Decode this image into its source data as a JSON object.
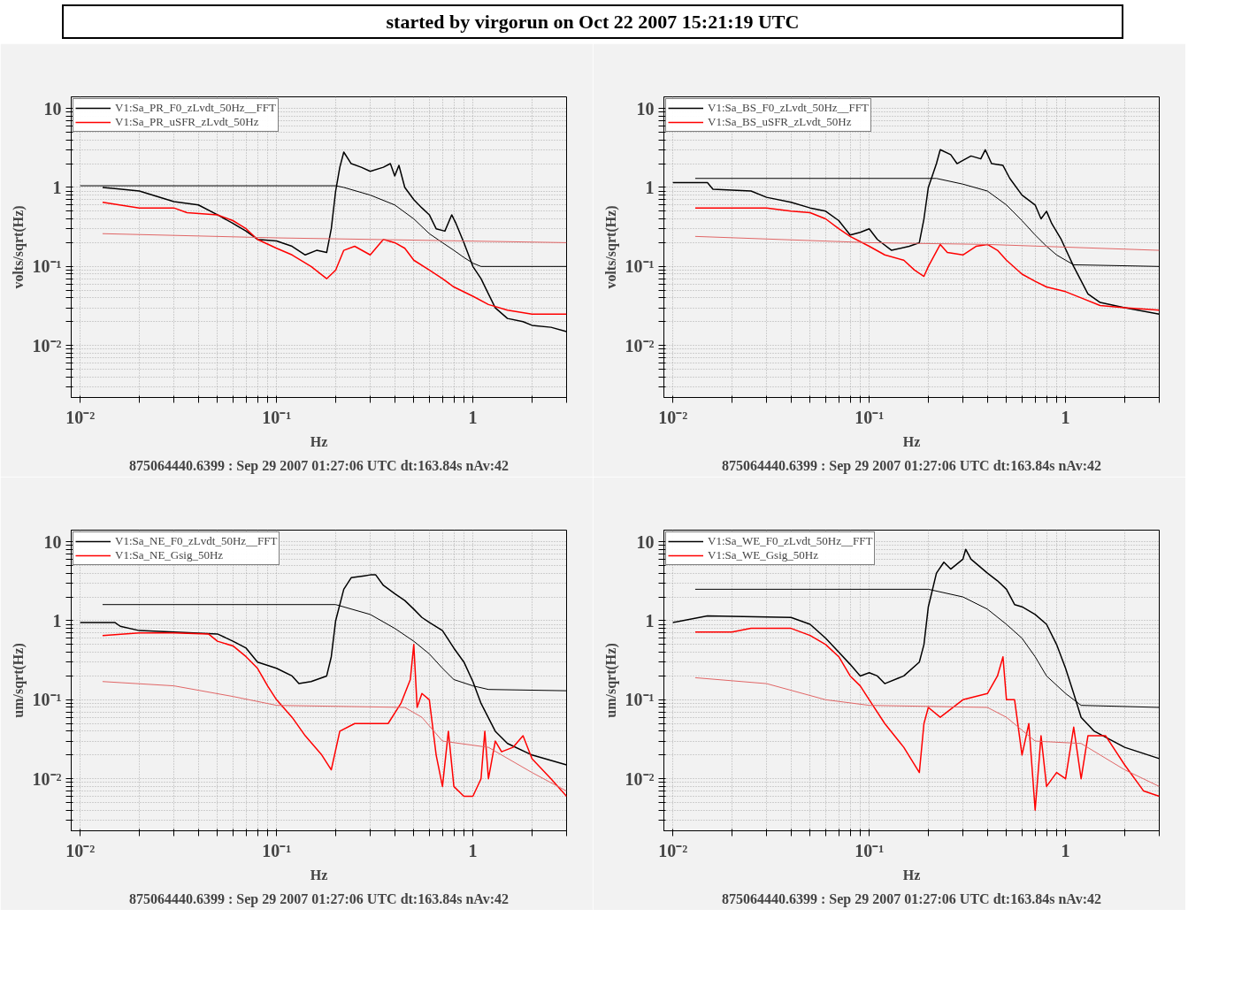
{
  "chart_data": [
    {
      "type": "line",
      "title": "started by virgorun on Oct 22 2007 15:21:19 UTC",
      "xlabel": "Hz",
      "ylabel": "volts/sqrt(Hz)",
      "log": "xy",
      "grid": true,
      "legend": "top",
      "xlim": [
        0.009,
        3
      ],
      "ylim": [
        0.0022,
        14
      ],
      "xticks": [
        {
          "value": 0.01,
          "label": "10⁻²"
        },
        {
          "value": 0.02,
          "label": null
        },
        {
          "value": 0.03,
          "label": null
        },
        {
          "value": 0.04,
          "label": null
        },
        {
          "value": 0.05,
          "label": null
        },
        {
          "value": 0.06,
          "label": null
        },
        {
          "value": 0.07,
          "label": null
        },
        {
          "value": 0.08,
          "label": null
        },
        {
          "value": 0.09,
          "label": null
        },
        {
          "value": 0.1,
          "label": "10⁻¹"
        },
        {
          "value": 0.2,
          "label": null
        },
        {
          "value": 0.3,
          "label": null
        },
        {
          "value": 0.4,
          "label": null
        },
        {
          "value": 0.5,
          "label": null
        },
        {
          "value": 0.6,
          "label": null
        },
        {
          "value": 0.7,
          "label": null
        },
        {
          "value": 0.8,
          "label": null
        },
        {
          "value": 0.9,
          "label": null
        },
        1,
        {
          "value": 2,
          "label": null
        },
        {
          "value": 3,
          "label": null
        }
      ],
      "yticks": [
        {
          "value": 0.003,
          "label": null
        },
        {
          "value": 0.004,
          "label": null
        },
        {
          "value": 0.005,
          "label": null
        },
        {
          "value": 0.006,
          "label": null
        },
        {
          "value": 0.007,
          "label": null
        },
        {
          "value": 0.008,
          "label": null
        },
        {
          "value": 0.009,
          "label": null
        },
        {
          "value": 0.01,
          "label": "10⁻²"
        },
        {
          "value": 0.02,
          "label": null
        },
        {
          "value": 0.03,
          "label": null
        },
        {
          "value": 0.04,
          "label": null
        },
        {
          "value": 0.05,
          "label": null
        },
        {
          "value": 0.06,
          "label": null
        },
        {
          "value": 0.07,
          "label": null
        },
        {
          "value": 0.08,
          "label": null
        },
        {
          "value": 0.09,
          "label": null
        },
        {
          "value": 0.1,
          "label": "10⁻¹"
        },
        {
          "value": 0.2,
          "label": null
        },
        {
          "value": 0.3,
          "label": null
        },
        {
          "value": 0.4,
          "label": null
        },
        {
          "value": 0.5,
          "label": null
        },
        {
          "value": 0.6,
          "label": null
        },
        {
          "value": 0.7,
          "label": null
        },
        {
          "value": 0.8,
          "label": null
        },
        {
          "value": 0.9,
          "label": null
        },
        1,
        {
          "value": 2,
          "label": null
        },
        {
          "value": 3,
          "label": null
        },
        {
          "value": 4,
          "label": null
        },
        {
          "value": 5,
          "label": null
        },
        {
          "value": 6,
          "label": null
        },
        {
          "value": 7,
          "label": null
        },
        {
          "value": 8,
          "label": null
        },
        {
          "value": 9,
          "label": null
        },
        10
      ],
      "annotations": [
        "875064440.6399 : Sep 29 2007 01:27:06 UTC dt:163.84s nAv:42"
      ],
      "series": [
        {
          "name": "V1:Sa_PR_F0_zLvdt_50Hz__FFT",
          "color": "#000000",
          "x": [
            0.013,
            0.015,
            0.02,
            0.03,
            0.04,
            0.05,
            0.06,
            0.07,
            0.08,
            0.1,
            0.12,
            0.14,
            0.16,
            0.18,
            0.19,
            0.2,
            0.21,
            0.22,
            0.24,
            0.27,
            0.3,
            0.35,
            0.38,
            0.4,
            0.42,
            0.45,
            0.5,
            0.55,
            0.6,
            0.65,
            0.72,
            0.78,
            0.82,
            0.9,
            1.0,
            1.1,
            1.2,
            1.3,
            1.5,
            1.8,
            2,
            2.5,
            3
          ],
          "values": [
            1.0,
            0.97,
            0.9,
            0.66,
            0.6,
            0.45,
            0.35,
            0.28,
            0.22,
            0.21,
            0.18,
            0.14,
            0.16,
            0.15,
            0.3,
            0.9,
            1.8,
            2.8,
            2.0,
            1.8,
            1.6,
            1.8,
            2.0,
            1.4,
            1.9,
            1.0,
            0.7,
            0.55,
            0.45,
            0.3,
            0.28,
            0.45,
            0.35,
            0.2,
            0.1,
            0.07,
            0.045,
            0.03,
            0.022,
            0.02,
            0.018,
            0.017,
            0.015
          ]
        },
        {
          "name": "V1:Sa_PR_uSFR_zLvdt_50Hz",
          "color": "#ff0000",
          "x": [
            0.013,
            0.02,
            0.03,
            0.035,
            0.05,
            0.06,
            0.07,
            0.08,
            0.1,
            0.12,
            0.15,
            0.18,
            0.2,
            0.22,
            0.25,
            0.3,
            0.35,
            0.4,
            0.45,
            0.5,
            0.6,
            0.7,
            0.8,
            1.0,
            1.2,
            1.5,
            2,
            3
          ],
          "values": [
            0.65,
            0.55,
            0.55,
            0.48,
            0.45,
            0.38,
            0.3,
            0.22,
            0.17,
            0.14,
            0.1,
            0.07,
            0.09,
            0.16,
            0.18,
            0.14,
            0.22,
            0.2,
            0.17,
            0.12,
            0.09,
            0.07,
            0.055,
            0.042,
            0.033,
            0.028,
            0.025,
            0.025
          ]
        },
        {
          "color": "#000000",
          "x": [
            0.01,
            0.2,
            0.22,
            0.3,
            0.4,
            0.5,
            0.6,
            0.7,
            0.8,
            0.9,
            1.0,
            1.1,
            3
          ],
          "values": [
            1.05,
            1.05,
            1.0,
            0.8,
            0.6,
            0.4,
            0.26,
            0.2,
            0.16,
            0.13,
            0.11,
            0.1,
            0.1
          ]
        },
        {
          "color": "#e06666",
          "x": [
            0.013,
            0.1,
            0.3,
            3
          ],
          "values": [
            0.26,
            0.23,
            0.22,
            0.2
          ]
        }
      ]
    },
    {
      "type": "line",
      "xlabel": "Hz",
      "ylabel": "volts/sqrt(Hz)",
      "log": "xy",
      "grid": true,
      "legend": "top",
      "xlim": [
        0.009,
        3
      ],
      "ylim": [
        0.0022,
        14
      ],
      "xticks": [
        {
          "value": 0.01,
          "label": "10⁻²"
        },
        {
          "value": 0.02,
          "label": null
        },
        {
          "value": 0.03,
          "label": null
        },
        {
          "value": 0.04,
          "label": null
        },
        {
          "value": 0.05,
          "label": null
        },
        {
          "value": 0.06,
          "label": null
        },
        {
          "value": 0.07,
          "label": null
        },
        {
          "value": 0.08,
          "label": null
        },
        {
          "value": 0.09,
          "label": null
        },
        {
          "value": 0.1,
          "label": "10⁻¹"
        },
        {
          "value": 0.2,
          "label": null
        },
        {
          "value": 0.3,
          "label": null
        },
        {
          "value": 0.4,
          "label": null
        },
        {
          "value": 0.5,
          "label": null
        },
        {
          "value": 0.6,
          "label": null
        },
        {
          "value": 0.7,
          "label": null
        },
        {
          "value": 0.8,
          "label": null
        },
        {
          "value": 0.9,
          "label": null
        },
        1,
        {
          "value": 2,
          "label": null
        },
        {
          "value": 3,
          "label": null
        }
      ],
      "yticks": [
        {
          "value": 0.003,
          "label": null
        },
        {
          "value": 0.004,
          "label": null
        },
        {
          "value": 0.005,
          "label": null
        },
        {
          "value": 0.006,
          "label": null
        },
        {
          "value": 0.007,
          "label": null
        },
        {
          "value": 0.008,
          "label": null
        },
        {
          "value": 0.009,
          "label": null
        },
        {
          "value": 0.01,
          "label": "10⁻²"
        },
        {
          "value": 0.02,
          "label": null
        },
        {
          "value": 0.03,
          "label": null
        },
        {
          "value": 0.04,
          "label": null
        },
        {
          "value": 0.05,
          "label": null
        },
        {
          "value": 0.06,
          "label": null
        },
        {
          "value": 0.07,
          "label": null
        },
        {
          "value": 0.08,
          "label": null
        },
        {
          "value": 0.09,
          "label": null
        },
        {
          "value": 0.1,
          "label": "10⁻¹"
        },
        {
          "value": 0.2,
          "label": null
        },
        {
          "value": 0.3,
          "label": null
        },
        {
          "value": 0.4,
          "label": null
        },
        {
          "value": 0.5,
          "label": null
        },
        {
          "value": 0.6,
          "label": null
        },
        {
          "value": 0.7,
          "label": null
        },
        {
          "value": 0.8,
          "label": null
        },
        {
          "value": 0.9,
          "label": null
        },
        1,
        {
          "value": 2,
          "label": null
        },
        {
          "value": 3,
          "label": null
        },
        {
          "value": 4,
          "label": null
        },
        {
          "value": 5,
          "label": null
        },
        {
          "value": 6,
          "label": null
        },
        {
          "value": 7,
          "label": null
        },
        {
          "value": 8,
          "label": null
        },
        {
          "value": 9,
          "label": null
        },
        10
      ],
      "annotations": [
        "875064440.6399 : Sep 29 2007 01:27:06 UTC dt:163.84s nAv:42"
      ],
      "series": [
        {
          "name": "V1:Sa_BS_F0_zLvdt_50Hz__FFT",
          "color": "#000000",
          "x": [
            0.01,
            0.015,
            0.016,
            0.025,
            0.03,
            0.04,
            0.05,
            0.06,
            0.07,
            0.08,
            0.09,
            0.1,
            0.11,
            0.13,
            0.16,
            0.18,
            0.19,
            0.2,
            0.22,
            0.23,
            0.26,
            0.28,
            0.3,
            0.33,
            0.37,
            0.39,
            0.42,
            0.48,
            0.52,
            0.6,
            0.7,
            0.75,
            0.8,
            0.85,
            0.95,
            1.1,
            1.3,
            1.5,
            2,
            3
          ],
          "values": [
            1.15,
            1.15,
            0.95,
            0.9,
            0.75,
            0.65,
            0.55,
            0.5,
            0.38,
            0.25,
            0.27,
            0.3,
            0.22,
            0.16,
            0.18,
            0.2,
            0.4,
            1.0,
            2.0,
            3.0,
            2.6,
            2.0,
            2.2,
            2.5,
            2.3,
            3.0,
            2.0,
            1.9,
            1.3,
            0.8,
            0.6,
            0.4,
            0.5,
            0.35,
            0.22,
            0.1,
            0.045,
            0.035,
            0.03,
            0.025
          ]
        },
        {
          "name": "V1:Sa_BS_uSFR_zLvdt_50Hz",
          "color": "#ff0000",
          "x": [
            0.013,
            0.02,
            0.03,
            0.04,
            0.05,
            0.06,
            0.07,
            0.08,
            0.1,
            0.12,
            0.15,
            0.17,
            0.19,
            0.2,
            0.23,
            0.25,
            0.3,
            0.35,
            0.4,
            0.45,
            0.5,
            0.6,
            0.7,
            0.8,
            1.0,
            1.2,
            1.5,
            2,
            3
          ],
          "values": [
            0.55,
            0.55,
            0.55,
            0.5,
            0.48,
            0.4,
            0.3,
            0.24,
            0.18,
            0.14,
            0.12,
            0.09,
            0.075,
            0.1,
            0.19,
            0.15,
            0.14,
            0.18,
            0.19,
            0.16,
            0.12,
            0.08,
            0.065,
            0.055,
            0.048,
            0.04,
            0.032,
            0.03,
            0.028
          ]
        },
        {
          "color": "#000000",
          "x": [
            0.013,
            0.22,
            0.3,
            0.4,
            0.5,
            0.6,
            0.7,
            0.8,
            0.9,
            1.0,
            1.1,
            3
          ],
          "values": [
            1.3,
            1.3,
            1.1,
            0.9,
            0.6,
            0.38,
            0.25,
            0.18,
            0.14,
            0.12,
            0.105,
            0.1
          ]
        },
        {
          "color": "#e06666",
          "x": [
            0.013,
            0.1,
            0.4,
            3
          ],
          "values": [
            0.24,
            0.2,
            0.19,
            0.16
          ]
        }
      ]
    },
    {
      "type": "line",
      "xlabel": "Hz",
      "ylabel": "um/sqrt(Hz)",
      "log": "xy",
      "grid": true,
      "legend": "top",
      "xlim": [
        0.009,
        3
      ],
      "ylim": [
        0.0022,
        14
      ],
      "xticks": [
        {
          "value": 0.01,
          "label": "10⁻²"
        },
        {
          "value": 0.02,
          "label": null
        },
        {
          "value": 0.03,
          "label": null
        },
        {
          "value": 0.04,
          "label": null
        },
        {
          "value": 0.05,
          "label": null
        },
        {
          "value": 0.06,
          "label": null
        },
        {
          "value": 0.07,
          "label": null
        },
        {
          "value": 0.08,
          "label": null
        },
        {
          "value": 0.09,
          "label": null
        },
        {
          "value": 0.1,
          "label": "10⁻¹"
        },
        {
          "value": 0.2,
          "label": null
        },
        {
          "value": 0.3,
          "label": null
        },
        {
          "value": 0.4,
          "label": null
        },
        {
          "value": 0.5,
          "label": null
        },
        {
          "value": 0.6,
          "label": null
        },
        {
          "value": 0.7,
          "label": null
        },
        {
          "value": 0.8,
          "label": null
        },
        {
          "value": 0.9,
          "label": null
        },
        1,
        {
          "value": 2,
          "label": null
        },
        {
          "value": 3,
          "label": null
        }
      ],
      "yticks": [
        {
          "value": 0.003,
          "label": null
        },
        {
          "value": 0.004,
          "label": null
        },
        {
          "value": 0.005,
          "label": null
        },
        {
          "value": 0.006,
          "label": null
        },
        {
          "value": 0.007,
          "label": null
        },
        {
          "value": 0.008,
          "label": null
        },
        {
          "value": 0.009,
          "label": null
        },
        {
          "value": 0.01,
          "label": "10⁻²"
        },
        {
          "value": 0.02,
          "label": null
        },
        {
          "value": 0.03,
          "label": null
        },
        {
          "value": 0.04,
          "label": null
        },
        {
          "value": 0.05,
          "label": null
        },
        {
          "value": 0.06,
          "label": null
        },
        {
          "value": 0.07,
          "label": null
        },
        {
          "value": 0.08,
          "label": null
        },
        {
          "value": 0.09,
          "label": null
        },
        {
          "value": 0.1,
          "label": "10⁻¹"
        },
        {
          "value": 0.2,
          "label": null
        },
        {
          "value": 0.3,
          "label": null
        },
        {
          "value": 0.4,
          "label": null
        },
        {
          "value": 0.5,
          "label": null
        },
        {
          "value": 0.6,
          "label": null
        },
        {
          "value": 0.7,
          "label": null
        },
        {
          "value": 0.8,
          "label": null
        },
        {
          "value": 0.9,
          "label": null
        },
        1,
        {
          "value": 2,
          "label": null
        },
        {
          "value": 3,
          "label": null
        },
        {
          "value": 4,
          "label": null
        },
        {
          "value": 5,
          "label": null
        },
        {
          "value": 6,
          "label": null
        },
        {
          "value": 7,
          "label": null
        },
        {
          "value": 8,
          "label": null
        },
        {
          "value": 9,
          "label": null
        },
        10
      ],
      "annotations": [
        "875064440.6399 : Sep 29 2007 01:27:06 UTC dt:163.84s nAv:42"
      ],
      "series": [
        {
          "name": "V1:Sa_NE_F0_zLvdt_50Hz__FFT",
          "color": "#000000",
          "x": [
            0.01,
            0.015,
            0.016,
            0.02,
            0.03,
            0.05,
            0.06,
            0.07,
            0.08,
            0.1,
            0.12,
            0.13,
            0.15,
            0.18,
            0.19,
            0.2,
            0.22,
            0.24,
            0.28,
            0.3,
            0.32,
            0.35,
            0.4,
            0.45,
            0.5,
            0.55,
            0.6,
            0.7,
            0.8,
            0.9,
            1.0,
            1.1,
            1.3,
            1.5,
            2,
            3
          ],
          "values": [
            0.95,
            0.95,
            0.85,
            0.75,
            0.72,
            0.68,
            0.55,
            0.45,
            0.3,
            0.25,
            0.2,
            0.16,
            0.17,
            0.2,
            0.35,
            1.0,
            2.5,
            3.5,
            3.7,
            3.8,
            3.8,
            2.8,
            2.2,
            1.8,
            1.4,
            1.1,
            0.95,
            0.75,
            0.45,
            0.3,
            0.17,
            0.09,
            0.04,
            0.028,
            0.02,
            0.015
          ]
        },
        {
          "name": "V1:Sa_NE_Gsig_50Hz",
          "color": "#ff0000",
          "x": [
            0.013,
            0.02,
            0.03,
            0.045,
            0.05,
            0.06,
            0.07,
            0.08,
            0.09,
            0.1,
            0.12,
            0.14,
            0.17,
            0.19,
            0.21,
            0.25,
            0.3,
            0.37,
            0.43,
            0.48,
            0.5,
            0.52,
            0.55,
            0.6,
            0.65,
            0.7,
            0.75,
            0.8,
            0.9,
            1.0,
            1.1,
            1.15,
            1.2,
            1.3,
            1.4,
            1.6,
            1.8,
            2,
            2.5,
            3
          ],
          "values": [
            0.65,
            0.7,
            0.7,
            0.68,
            0.55,
            0.48,
            0.35,
            0.25,
            0.15,
            0.1,
            0.06,
            0.035,
            0.02,
            0.013,
            0.04,
            0.05,
            0.05,
            0.05,
            0.09,
            0.18,
            0.5,
            0.08,
            0.12,
            0.1,
            0.02,
            0.008,
            0.04,
            0.008,
            0.006,
            0.006,
            0.01,
            0.04,
            0.01,
            0.03,
            0.022,
            0.025,
            0.035,
            0.018,
            0.01,
            0.006
          ]
        },
        {
          "color": "#000000",
          "x": [
            0.013,
            0.2,
            0.3,
            0.4,
            0.5,
            0.6,
            0.7,
            0.8,
            1.0,
            1.2,
            3
          ],
          "values": [
            1.6,
            1.6,
            1.2,
            0.8,
            0.55,
            0.38,
            0.25,
            0.18,
            0.15,
            0.135,
            0.13
          ]
        },
        {
          "color": "#e06666",
          "x": [
            0.013,
            0.03,
            0.06,
            0.1,
            0.45,
            0.55,
            0.7,
            1.2,
            2,
            3
          ],
          "values": [
            0.17,
            0.15,
            0.11,
            0.085,
            0.08,
            0.06,
            0.03,
            0.025,
            0.012,
            0.007
          ]
        }
      ]
    },
    {
      "type": "line",
      "xlabel": "Hz",
      "ylabel": "um/sqrt(Hz)",
      "log": "xy",
      "grid": true,
      "legend": "top",
      "xlim": [
        0.009,
        3
      ],
      "ylim": [
        0.0022,
        14
      ],
      "xticks": [
        {
          "value": 0.01,
          "label": "10⁻²"
        },
        {
          "value": 0.02,
          "label": null
        },
        {
          "value": 0.03,
          "label": null
        },
        {
          "value": 0.04,
          "label": null
        },
        {
          "value": 0.05,
          "label": null
        },
        {
          "value": 0.06,
          "label": null
        },
        {
          "value": 0.07,
          "label": null
        },
        {
          "value": 0.08,
          "label": null
        },
        {
          "value": 0.09,
          "label": null
        },
        {
          "value": 0.1,
          "label": "10⁻¹"
        },
        {
          "value": 0.2,
          "label": null
        },
        {
          "value": 0.3,
          "label": null
        },
        {
          "value": 0.4,
          "label": null
        },
        {
          "value": 0.5,
          "label": null
        },
        {
          "value": 0.6,
          "label": null
        },
        {
          "value": 0.7,
          "label": null
        },
        {
          "value": 0.8,
          "label": null
        },
        {
          "value": 0.9,
          "label": null
        },
        1,
        {
          "value": 2,
          "label": null
        },
        {
          "value": 3,
          "label": null
        }
      ],
      "yticks": [
        {
          "value": 0.003,
          "label": null
        },
        {
          "value": 0.004,
          "label": null
        },
        {
          "value": 0.005,
          "label": null
        },
        {
          "value": 0.006,
          "label": null
        },
        {
          "value": 0.007,
          "label": null
        },
        {
          "value": 0.008,
          "label": null
        },
        {
          "value": 0.009,
          "label": null
        },
        {
          "value": 0.01,
          "label": "10⁻²"
        },
        {
          "value": 0.02,
          "label": null
        },
        {
          "value": 0.03,
          "label": null
        },
        {
          "value": 0.04,
          "label": null
        },
        {
          "value": 0.05,
          "label": null
        },
        {
          "value": 0.06,
          "label": null
        },
        {
          "value": 0.07,
          "label": null
        },
        {
          "value": 0.08,
          "label": null
        },
        {
          "value": 0.09,
          "label": null
        },
        {
          "value": 0.1,
          "label": "10⁻¹"
        },
        {
          "value": 0.2,
          "label": null
        },
        {
          "value": 0.3,
          "label": null
        },
        {
          "value": 0.4,
          "label": null
        },
        {
          "value": 0.5,
          "label": null
        },
        {
          "value": 0.6,
          "label": null
        },
        {
          "value": 0.7,
          "label": null
        },
        {
          "value": 0.8,
          "label": null
        },
        {
          "value": 0.9,
          "label": null
        },
        1,
        {
          "value": 2,
          "label": null
        },
        {
          "value": 3,
          "label": null
        },
        {
          "value": 4,
          "label": null
        },
        {
          "value": 5,
          "label": null
        },
        {
          "value": 6,
          "label": null
        },
        {
          "value": 7,
          "label": null
        },
        {
          "value": 8,
          "label": null
        },
        {
          "value": 9,
          "label": null
        },
        10
      ],
      "annotations": [
        "875064440.6399 : Sep 29 2007 01:27:06 UTC dt:163.84s nAv:42"
      ],
      "series": [
        {
          "name": "V1:Sa_WE_F0_zLvdt_50Hz__FFT",
          "color": "#000000",
          "x": [
            0.01,
            0.015,
            0.04,
            0.05,
            0.06,
            0.07,
            0.08,
            0.09,
            0.1,
            0.11,
            0.12,
            0.15,
            0.18,
            0.19,
            0.2,
            0.22,
            0.24,
            0.26,
            0.3,
            0.31,
            0.33,
            0.4,
            0.45,
            0.5,
            0.55,
            0.6,
            0.7,
            0.8,
            0.9,
            1.0,
            1.1,
            1.2,
            1.4,
            2,
            3
          ],
          "values": [
            0.95,
            1.15,
            1.1,
            0.9,
            0.6,
            0.4,
            0.28,
            0.2,
            0.22,
            0.2,
            0.16,
            0.2,
            0.3,
            0.5,
            1.5,
            4.0,
            5.5,
            4.5,
            6.0,
            8.0,
            6.0,
            4.0,
            3.2,
            2.5,
            1.6,
            1.5,
            1.2,
            0.9,
            0.5,
            0.25,
            0.12,
            0.06,
            0.04,
            0.025,
            0.018
          ]
        },
        {
          "name": "V1:Sa_WE_Gsig_50Hz",
          "color": "#ff0000",
          "x": [
            0.013,
            0.02,
            0.025,
            0.04,
            0.05,
            0.06,
            0.07,
            0.08,
            0.09,
            0.1,
            0.12,
            0.15,
            0.18,
            0.19,
            0.2,
            0.23,
            0.3,
            0.4,
            0.45,
            0.48,
            0.5,
            0.55,
            0.6,
            0.65,
            0.7,
            0.75,
            0.8,
            0.9,
            1.0,
            1.1,
            1.2,
            1.3,
            1.6,
            2,
            2.5,
            3
          ],
          "values": [
            0.72,
            0.72,
            0.8,
            0.8,
            0.65,
            0.5,
            0.35,
            0.2,
            0.15,
            0.1,
            0.05,
            0.025,
            0.012,
            0.05,
            0.08,
            0.06,
            0.1,
            0.12,
            0.2,
            0.35,
            0.1,
            0.1,
            0.02,
            0.05,
            0.004,
            0.035,
            0.008,
            0.012,
            0.01,
            0.045,
            0.01,
            0.035,
            0.035,
            0.015,
            0.007,
            0.006
          ]
        },
        {
          "color": "#000000",
          "x": [
            0.013,
            0.2,
            0.3,
            0.4,
            0.5,
            0.6,
            0.7,
            0.8,
            1.0,
            1.2,
            3
          ],
          "values": [
            2.5,
            2.5,
            2.0,
            1.4,
            0.9,
            0.6,
            0.35,
            0.2,
            0.12,
            0.085,
            0.08
          ]
        },
        {
          "color": "#e06666",
          "x": [
            0.013,
            0.03,
            0.06,
            0.1,
            0.4,
            0.5,
            0.7,
            1.2,
            2,
            3
          ],
          "values": [
            0.19,
            0.16,
            0.1,
            0.085,
            0.08,
            0.06,
            0.03,
            0.028,
            0.013,
            0.008
          ]
        }
      ]
    }
  ]
}
